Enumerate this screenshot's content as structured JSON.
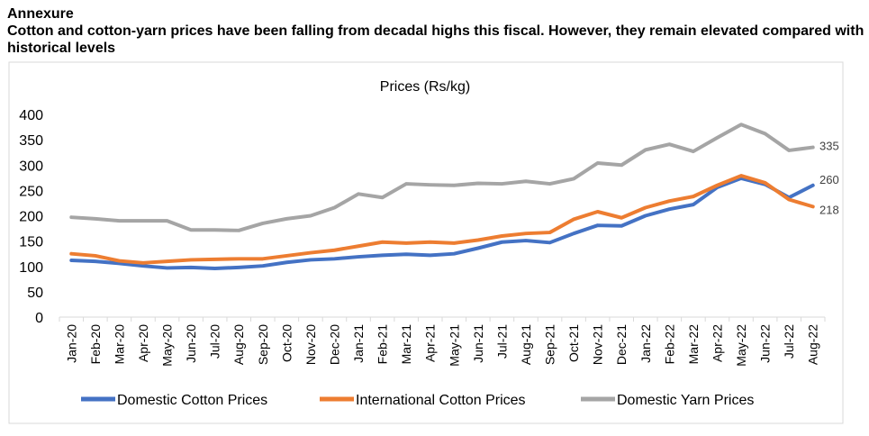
{
  "header": {
    "label": "Annexure",
    "title": "Cotton and cotton-yarn prices have been falling from decadal highs this fiscal. However, they remain elevated compared with historical levels"
  },
  "chart_data": {
    "type": "line",
    "title": "Prices (Rs/kg)",
    "xlabel": "",
    "ylabel": "",
    "ylim": [
      0,
      400
    ],
    "yticks": [
      0,
      50,
      100,
      150,
      200,
      250,
      300,
      350,
      400
    ],
    "grid": false,
    "legend": "bottom",
    "categories": [
      "Jan-20",
      "Feb-20",
      "Mar-20",
      "Apr-20",
      "May-20",
      "Jun-20",
      "Jul-20",
      "Aug-20",
      "Sep-20",
      "Oct-20",
      "Nov-20",
      "Dec-20",
      "Jan-21",
      "Feb-21",
      "Mar-21",
      "Apr-21",
      "May-21",
      "Jun-21",
      "Jul-21",
      "Aug-21",
      "Sep-21",
      "Oct-21",
      "Nov-21",
      "Dec-21",
      "Jan-22",
      "Feb-22",
      "Mar-22",
      "Apr-22",
      "May-22",
      "Jun-22",
      "Jul-22",
      "Aug-22"
    ],
    "series": [
      {
        "name": "Domestic Cotton Prices",
        "color": "#4472c4",
        "end_label": "260",
        "values": [
          112,
          110,
          106,
          101,
          97,
          98,
          96,
          98,
          101,
          108,
          113,
          115,
          119,
          122,
          124,
          122,
          125,
          136,
          148,
          151,
          147,
          165,
          181,
          180,
          200,
          213,
          222,
          256,
          274,
          262,
          236,
          260
        ]
      },
      {
        "name": "International Cotton Prices",
        "color": "#ed7d31",
        "end_label": "218",
        "values": [
          125,
          121,
          111,
          107,
          110,
          113,
          114,
          115,
          115,
          121,
          127,
          132,
          140,
          148,
          146,
          148,
          146,
          152,
          160,
          165,
          167,
          193,
          208,
          196,
          216,
          229,
          238,
          260,
          279,
          265,
          232,
          218
        ]
      },
      {
        "name": "Domestic Yarn Prices",
        "color": "#a5a5a5",
        "end_label": "335",
        "values": [
          197,
          194,
          190,
          190,
          190,
          172,
          172,
          171,
          185,
          194,
          200,
          216,
          243,
          236,
          263,
          261,
          260,
          264,
          263,
          268,
          263,
          273,
          304,
          300,
          330,
          341,
          327,
          354,
          380,
          362,
          329,
          335
        ]
      }
    ]
  }
}
